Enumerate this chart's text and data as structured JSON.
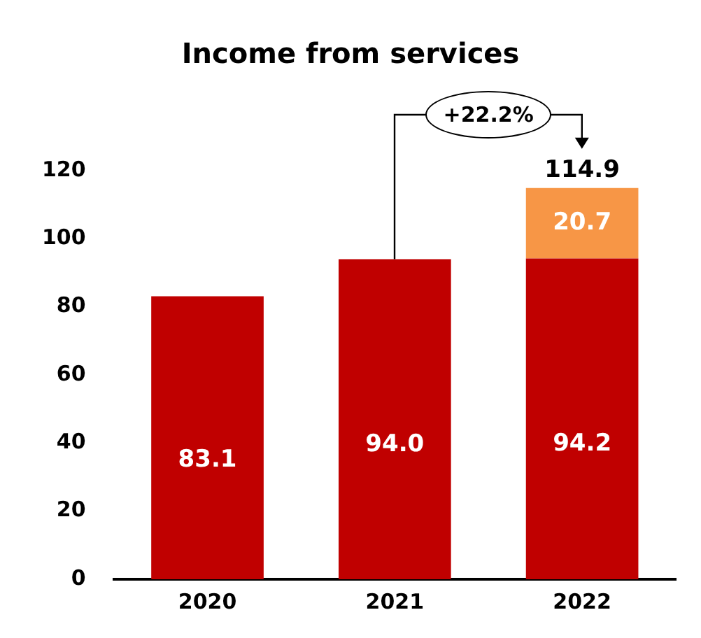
{
  "chart_data": {
    "type": "bar",
    "title": "Income from services",
    "categories": [
      "2020",
      "2021",
      "2022"
    ],
    "stacked": true,
    "series": [
      {
        "color": "#c00000",
        "values": [
          83.1,
          94.0,
          94.2
        ],
        "value_labels": [
          "83.1",
          "94.0",
          "94.2"
        ]
      },
      {
        "color": "#f79646",
        "values": [
          null,
          null,
          20.7
        ],
        "value_labels": [
          null,
          null,
          "20.7"
        ]
      }
    ],
    "totals": [
      null,
      null,
      "114.9"
    ],
    "ylim": [
      0,
      120
    ],
    "yticks": [
      0,
      20,
      40,
      60,
      80,
      100,
      120
    ],
    "grid": false,
    "legend": false,
    "annotations": [
      "+22.2%"
    ]
  }
}
